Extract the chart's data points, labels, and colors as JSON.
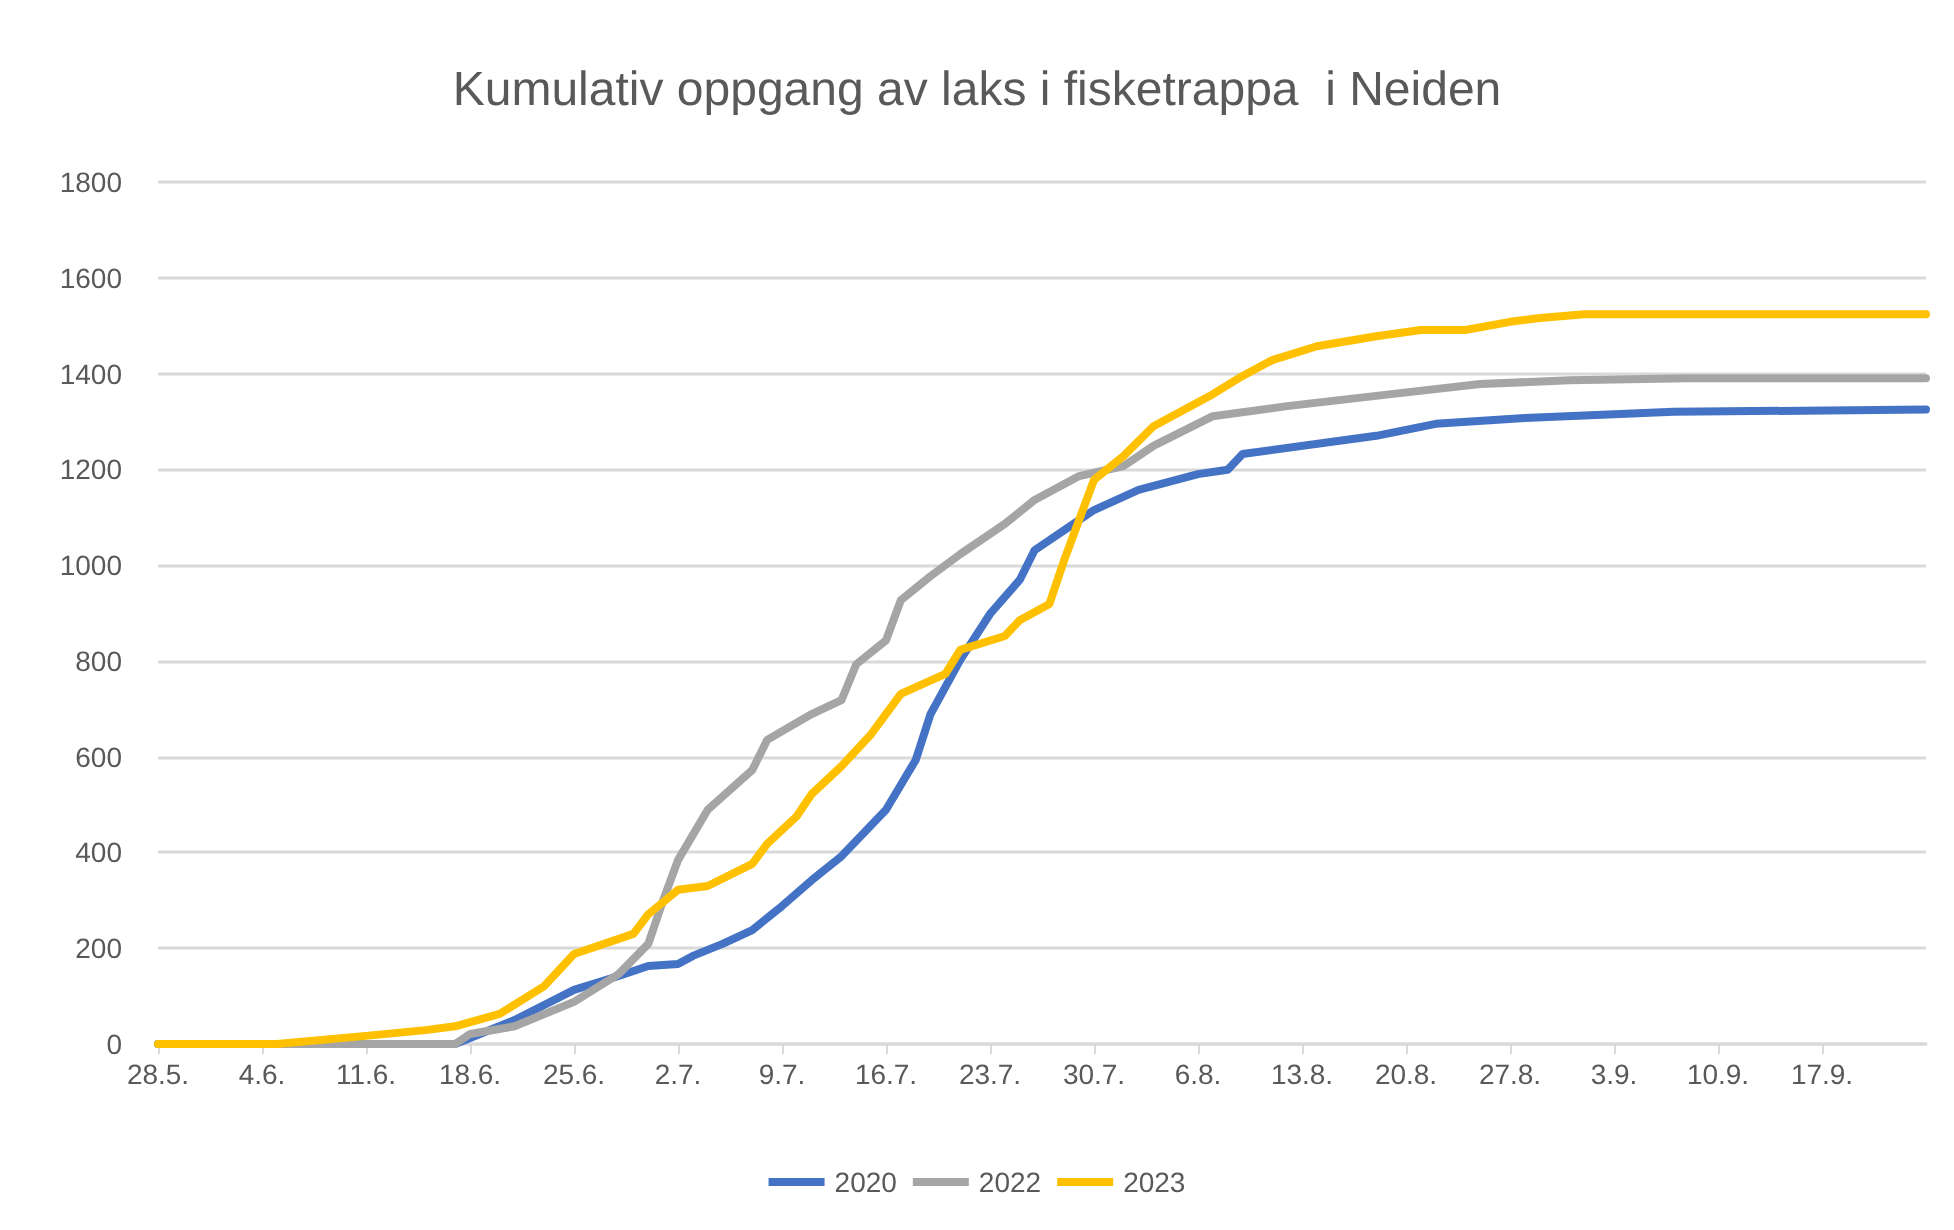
{
  "chart_data": {
    "type": "line",
    "title": "Kumulativ oppgang av laks i fisketrappa  i Neiden",
    "xlim": [
      "--05-28",
      "--09-24"
    ],
    "xticks": [
      {
        "value": "--05-28",
        "label": "28.5."
      },
      {
        "value": "--06-04",
        "label": "4.6."
      },
      {
        "value": "--06-11",
        "label": "11.6."
      },
      {
        "value": "--06-18",
        "label": "18.6."
      },
      {
        "value": "--06-25",
        "label": "25.6."
      },
      {
        "value": "--07-02",
        "label": "2.7."
      },
      {
        "value": "--07-09",
        "label": "9.7."
      },
      {
        "value": "--07-16",
        "label": "16.7."
      },
      {
        "value": "--07-23",
        "label": "23.7."
      },
      {
        "value": "--07-30",
        "label": "30.7."
      },
      {
        "value": "--08-06",
        "label": "6.8."
      },
      {
        "value": "--08-13",
        "label": "13.8."
      },
      {
        "value": "--08-20",
        "label": "20.8."
      },
      {
        "value": "--08-27",
        "label": "27.8."
      },
      {
        "value": "--09-03",
        "label": "3.9."
      },
      {
        "value": "--09-10",
        "label": "10.9."
      },
      {
        "value": "--09-17",
        "label": "17.9."
      }
    ],
    "ylim": [
      0,
      1800
    ],
    "yticks": [
      0,
      200,
      400,
      600,
      800,
      1000,
      1200,
      1400,
      1600,
      1800
    ],
    "grid": "y",
    "legend": "bottom",
    "marker": "none",
    "line_style": "solid",
    "series": [
      {
        "name": "2020",
        "color": "#4472c4",
        "x": [
          "--05-28",
          "--06-17",
          "--06-21",
          "--06-25",
          "--06-28",
          "--06-30",
          "--07-02",
          "--07-03",
          "--07-05",
          "--07-07",
          "--07-09",
          "--07-11",
          "--07-13",
          "--07-16",
          "--07-18",
          "--07-19",
          "--07-21",
          "--07-23",
          "--07-25",
          "--07-26",
          "--07-28",
          "--07-30",
          "--08-02",
          "--08-06",
          "--08-08",
          "--08-09",
          "--08-18",
          "--08-22",
          "--08-28",
          "--09-07",
          "--09-24"
        ],
        "values": [
          0,
          0,
          50,
          113,
          142,
          163,
          167,
          184,
          209,
          238,
          288,
          342,
          392,
          489,
          593,
          689,
          802,
          898,
          969,
          1031,
          1073,
          1115,
          1157,
          1190,
          1199,
          1232,
          1270,
          1295,
          1307,
          1320,
          1325
        ]
      },
      {
        "name": "2022",
        "color": "#a5a5a5",
        "x": [
          "--05-28",
          "--06-17",
          "--06-18",
          "--06-21",
          "--06-25",
          "--06-28",
          "--06-30",
          "--07-01",
          "--07-02",
          "--07-04",
          "--07-07",
          "--07-08",
          "--07-11",
          "--07-13",
          "--07-14",
          "--07-16",
          "--07-17",
          "--07-19",
          "--07-21",
          "--07-24",
          "--07-26",
          "--07-29",
          "--08-01",
          "--08-03",
          "--08-07",
          "--08-12",
          "--08-19",
          "--08-25",
          "--08-31",
          "--09-08",
          "--09-24"
        ],
        "values": [
          0,
          0,
          21,
          37,
          88,
          146,
          209,
          300,
          384,
          489,
          572,
          635,
          689,
          718,
          793,
          843,
          927,
          977,
          1023,
          1086,
          1136,
          1186,
          1207,
          1249,
          1311,
          1332,
          1357,
          1378,
          1386,
          1390,
          1390
        ]
      },
      {
        "name": "2023",
        "color": "#ffc000",
        "x": [
          "--05-28",
          "--06-05",
          "--06-11",
          "--06-15",
          "--06-17",
          "--06-20",
          "--06-23",
          "--06-25",
          "--06-29",
          "--06-30",
          "--07-02",
          "--07-04",
          "--07-07",
          "--07-08",
          "--07-10",
          "--07-11",
          "--07-13",
          "--07-15",
          "--07-17",
          "--07-20",
          "--07-21",
          "--07-24",
          "--07-25",
          "--07-27",
          "--07-28",
          "--07-30",
          "--08-01",
          "--08-03",
          "--08-07",
          "--08-09",
          "--08-11",
          "--08-14",
          "--08-18",
          "--08-21",
          "--08-24",
          "--08-27",
          "--08-29",
          "--09-01",
          "--09-24"
        ],
        "values": [
          0,
          0,
          17,
          29,
          37,
          63,
          121,
          188,
          230,
          271,
          322,
          330,
          376,
          418,
          476,
          522,
          580,
          647,
          731,
          773,
          823,
          852,
          885,
          919,
          1011,
          1178,
          1228,
          1290,
          1357,
          1395,
          1428,
          1457,
          1478,
          1491,
          1491,
          1508,
          1516,
          1524,
          1524
        ]
      }
    ]
  }
}
